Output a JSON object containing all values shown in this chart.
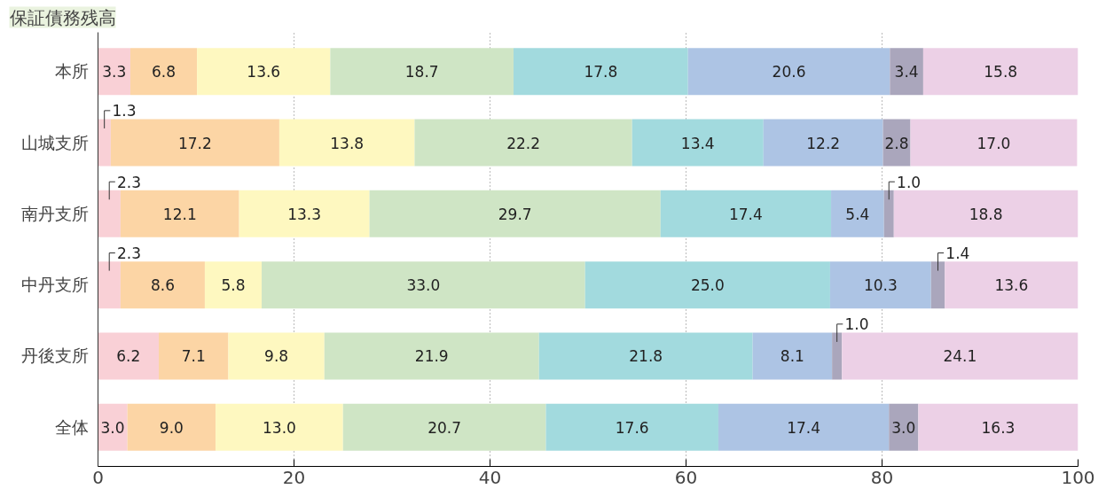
{
  "chart_data": {
    "type": "bar",
    "orientation": "horizontal",
    "stacked": true,
    "title": "保証債務残高",
    "categories": [
      "本所",
      "山城支所",
      "南丹支所",
      "中丹支所",
      "丹後支所",
      "全体"
    ],
    "series": [
      {
        "color": "#f9d0d6",
        "values": [
          3.3,
          1.3,
          2.3,
          2.3,
          6.2,
          3.0
        ],
        "value_labels": [
          "3.3",
          "1.3",
          "2.3",
          "2.3",
          "6.2",
          "3.0"
        ]
      },
      {
        "color": "#fcd5a5",
        "values": [
          6.8,
          17.2,
          12.1,
          8.6,
          7.1,
          9.0
        ],
        "value_labels": [
          "6.8",
          "17.2",
          "12.1",
          "8.6",
          "7.1",
          "9.0"
        ]
      },
      {
        "color": "#fef8c0",
        "values": [
          13.6,
          13.8,
          13.3,
          5.8,
          9.8,
          13.0
        ],
        "value_labels": [
          "13.6",
          "13.8",
          "13.3",
          "5.8",
          "9.8",
          "13.0"
        ]
      },
      {
        "color": "#cfe5c5",
        "values": [
          18.7,
          22.2,
          29.7,
          33.0,
          21.9,
          20.7
        ],
        "value_labels": [
          "18.7",
          "22.2",
          "29.7",
          "33.0",
          "21.9",
          "20.7"
        ]
      },
      {
        "color": "#a2dade",
        "values": [
          17.8,
          13.4,
          17.4,
          25.0,
          21.8,
          17.6
        ],
        "value_labels": [
          "17.8",
          "13.4",
          "17.4",
          "25.0",
          "21.8",
          "17.6"
        ]
      },
      {
        "color": "#adc4e4",
        "values": [
          20.6,
          12.2,
          5.4,
          10.3,
          8.1,
          17.4
        ],
        "value_labels": [
          "20.6",
          "12.2",
          "5.4",
          "10.3",
          "8.1",
          "17.4"
        ]
      },
      {
        "color": "#aaa6bc",
        "values": [
          3.4,
          2.8,
          1.0,
          1.4,
          1.0,
          3.0
        ],
        "value_labels": [
          "3.4",
          "2.8",
          "1.0",
          "1.4",
          "1.0",
          "3.0"
        ]
      },
      {
        "color": "#ecd0e6",
        "values": [
          15.8,
          17.0,
          18.8,
          13.6,
          24.1,
          16.3
        ],
        "value_labels": [
          "15.8",
          "17.0",
          "18.8",
          "13.6",
          "24.1",
          "16.3"
        ]
      }
    ],
    "xlim": [
      0,
      100
    ],
    "xticks": [
      0,
      20,
      40,
      60,
      80,
      100
    ],
    "grid": "x"
  }
}
